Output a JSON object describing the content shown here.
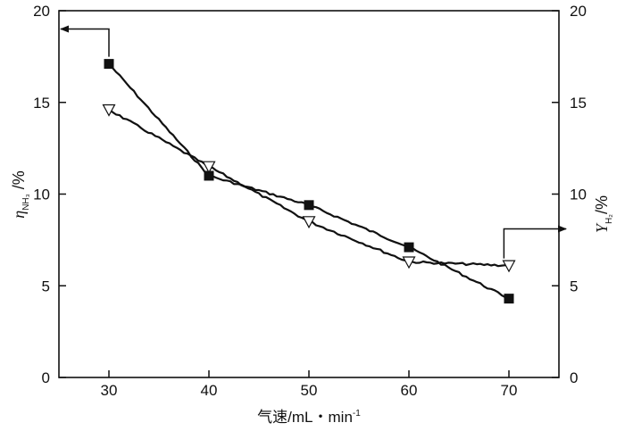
{
  "chart_data": {
    "type": "line",
    "x_ticks": [
      30,
      40,
      50,
      60,
      70
    ],
    "y_ticks": [
      0,
      5,
      10,
      15,
      20
    ],
    "y2_ticks": [
      0,
      5,
      10,
      15,
      20
    ],
    "xlim": [
      25,
      75
    ],
    "ylim": [
      0,
      20
    ],
    "y2lim": [
      0,
      20
    ],
    "xlabel": "气速/mL・min",
    "xlabel_sup": "-1",
    "ylabel_main": "η",
    "ylabel_sub": "NH₃",
    "ylabel_unit": " /%",
    "y2label_main": "Y",
    "y2label_sub": "H₂",
    "y2label_unit": "/%",
    "grid": false,
    "series": [
      {
        "marker": "filled-square",
        "axis": "left",
        "x": [
          30,
          40,
          50,
          60,
          70
        ],
        "y": [
          17.1,
          11.0,
          9.4,
          7.1,
          4.3
        ]
      },
      {
        "marker": "open-triangle-down",
        "axis": "right",
        "x": [
          30,
          40,
          50,
          60,
          70
        ],
        "y": [
          14.6,
          11.5,
          8.5,
          6.3,
          6.1
        ]
      }
    ],
    "annotations": [
      {
        "target": "left-axis",
        "from": [
          30,
          17.1
        ]
      },
      {
        "target": "right-axis",
        "from": [
          69.5,
          6.2
        ]
      }
    ]
  }
}
